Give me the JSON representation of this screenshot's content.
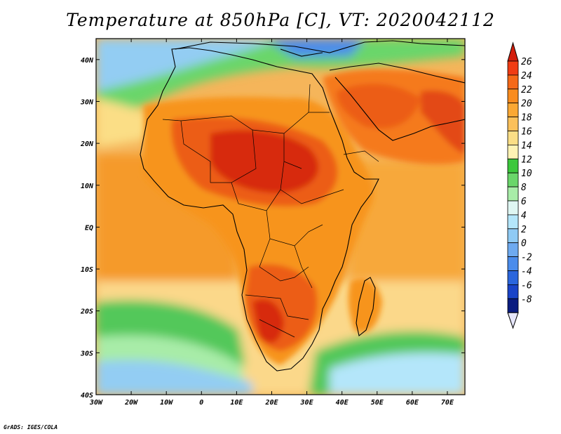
{
  "title": "Temperature at 850hPa [C], VT: 2020042112",
  "credit": "GrADS: IGES/COLA",
  "map": {
    "lon_range": [
      -30,
      75
    ],
    "lat_range": [
      -40,
      45
    ],
    "lon_ticks": [
      {
        "lon": -30,
        "label": "30W"
      },
      {
        "lon": -20,
        "label": "20W"
      },
      {
        "lon": -10,
        "label": "10W"
      },
      {
        "lon": 0,
        "label": "0"
      },
      {
        "lon": 10,
        "label": "10E"
      },
      {
        "lon": 20,
        "label": "20E"
      },
      {
        "lon": 30,
        "label": "30E"
      },
      {
        "lon": 40,
        "label": "40E"
      },
      {
        "lon": 50,
        "label": "50E"
      },
      {
        "lon": 60,
        "label": "60E"
      },
      {
        "lon": 70,
        "label": "70E"
      }
    ],
    "lat_ticks": [
      {
        "lat": 40,
        "label": "40N"
      },
      {
        "lat": 30,
        "label": "30N"
      },
      {
        "lat": 20,
        "label": "20N"
      },
      {
        "lat": 10,
        "label": "10N"
      },
      {
        "lat": 0,
        "label": "EQ"
      },
      {
        "lat": -10,
        "label": "10S"
      },
      {
        "lat": -20,
        "label": "20S"
      },
      {
        "lat": -30,
        "label": "30S"
      },
      {
        "lat": -40,
        "label": "40S"
      }
    ]
  },
  "colorbar": {
    "levels": [
      "26",
      "24",
      "22",
      "20",
      "18",
      "16",
      "14",
      "12",
      "10",
      "8",
      "6",
      "4",
      "2",
      "0",
      "-2",
      "-4",
      "-6",
      "-8"
    ],
    "colors": [
      "#f03c14",
      "#f56918",
      "#f98c1f",
      "#faa834",
      "#fbc05a",
      "#fbde86",
      "#fff3b4",
      "#3cc83c",
      "#6ad66a",
      "#a8eca8",
      "#dff6f2",
      "#b4e6fa",
      "#8fcaf4",
      "#6eaaf0",
      "#4b8ceb",
      "#2b66dd",
      "#1a44c8",
      "#0a1c80"
    ],
    "top_triangle": "#d31e0c",
    "bottom_triangle": "#e6e6fa"
  },
  "palette": {
    "ocean_tropical": "#f5b55a",
    "ocean_mid": "#fbd88a",
    "land_hot": "#d72a10",
    "land_warm": "#ec5d18",
    "land_mild": "#f7941e",
    "cool_green": "#52c85a",
    "cold_blue": "#93cdf3"
  }
}
